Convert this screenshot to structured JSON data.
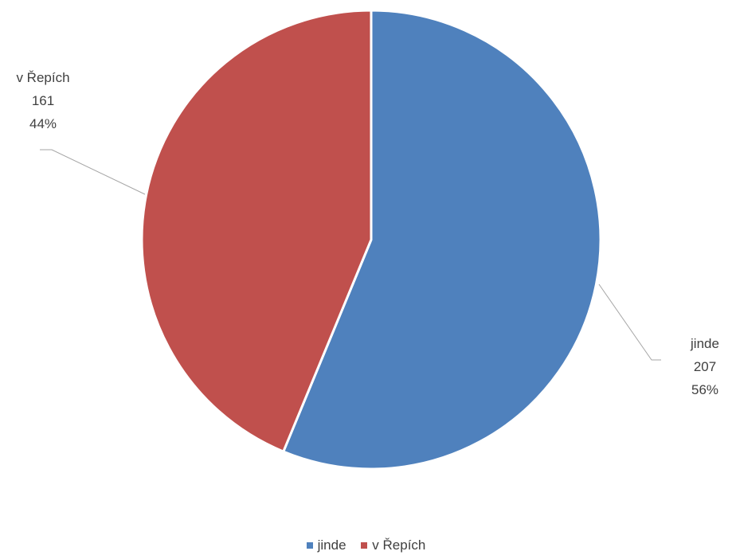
{
  "chart_data": {
    "type": "pie",
    "title": "",
    "start_angle_deg": 0,
    "direction": "clockwise",
    "slices": [
      {
        "label": "jinde",
        "value": 207,
        "percent": "56%",
        "color": "#4F81BD"
      },
      {
        "label": "v Řepích",
        "value": 161,
        "percent": "44%",
        "color": "#C0504D"
      }
    ],
    "legend": {
      "position": "bottom",
      "items": [
        {
          "label": "jinde",
          "color": "#4F81BD"
        },
        {
          "label": "v Řepích",
          "color": "#C0504D"
        }
      ]
    }
  }
}
